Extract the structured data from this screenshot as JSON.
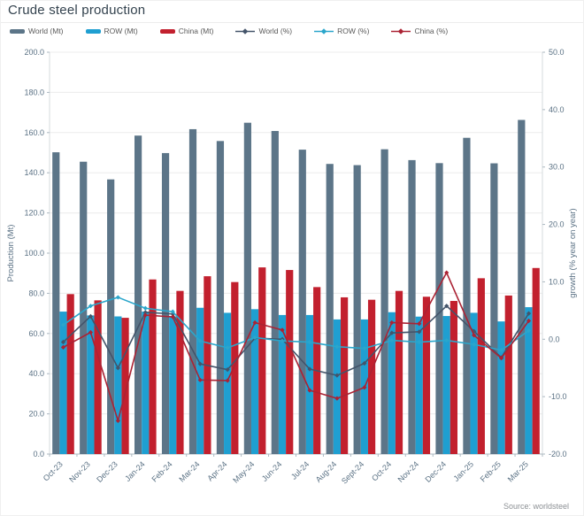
{
  "title": "Crude steel production",
  "source": "Source: worldsteel",
  "chart_data": {
    "type": "combo-bar-line",
    "categories": [
      "Oct-23",
      "Nov-23",
      "Dec-23",
      "Jan-24",
      "Feb-24",
      "Mar-24",
      "Apr-24",
      "May-24",
      "Jun-24",
      "Jul-24",
      "Aug-24",
      "Sept-24",
      "Oct-24",
      "Nov-24",
      "Dec-24",
      "Jan-25",
      "Feb-25",
      "Mar-25"
    ],
    "bar_series": [
      {
        "name": "World (Mt)",
        "color": "#5C7588",
        "values": [
          150.2,
          145.5,
          136.7,
          158.5,
          149.8,
          161.7,
          155.8,
          164.9,
          160.8,
          151.5,
          144.4,
          143.8,
          151.7,
          146.3,
          144.8,
          157.4,
          144.7,
          166.3
        ]
      },
      {
        "name": "ROW (Mt)",
        "color": "#1F9FD1",
        "values": [
          70.9,
          69.0,
          68.5,
          70.9,
          68.5,
          72.8,
          70.3,
          72.1,
          69.2,
          69.2,
          67.0,
          67.0,
          70.6,
          68.4,
          68.7,
          70.3,
          66.0,
          73.1
        ]
      },
      {
        "name": "China (Mt)",
        "color": "#C2202E",
        "values": [
          79.6,
          76.5,
          67.8,
          86.9,
          81.2,
          88.5,
          85.6,
          92.9,
          91.6,
          83.1,
          78.0,
          76.8,
          81.2,
          78.3,
          76.2,
          87.5,
          78.9,
          92.6
        ]
      }
    ],
    "line_series": [
      {
        "name": "World (%)",
        "color": "#44546A",
        "values": [
          -0.5,
          4.0,
          -5.0,
          4.7,
          4.4,
          -4.3,
          -5.3,
          0.2,
          0.0,
          -5.2,
          -6.3,
          -4.2,
          1.1,
          1.3,
          5.8,
          1.4,
          -3.2,
          4.5
        ]
      },
      {
        "name": "ROW (%)",
        "color": "#2BA6CB",
        "values": [
          2.5,
          5.8,
          7.3,
          5.4,
          4.8,
          -0.3,
          -1.5,
          0.3,
          -0.3,
          -0.5,
          -1.3,
          -1.6,
          -0.2,
          -0.5,
          -0.2,
          -0.9,
          -1.9,
          1.5
        ]
      },
      {
        "name": "China (%)",
        "color": "#AB2334",
        "values": [
          -1.4,
          1.2,
          -14.2,
          4.2,
          3.9,
          -7.1,
          -7.2,
          2.9,
          1.6,
          -8.9,
          -10.3,
          -8.4,
          2.9,
          2.7,
          11.6,
          0.7,
          -3.3,
          3.2
        ]
      }
    ],
    "left_axis": {
      "label": "Production (Mt)",
      "min": 0,
      "max": 200,
      "step": 20
    },
    "right_axis": {
      "label": "growth (% year on year)",
      "min": -20,
      "max": 50,
      "step": 10
    },
    "grid": true,
    "legend_position": "top"
  }
}
